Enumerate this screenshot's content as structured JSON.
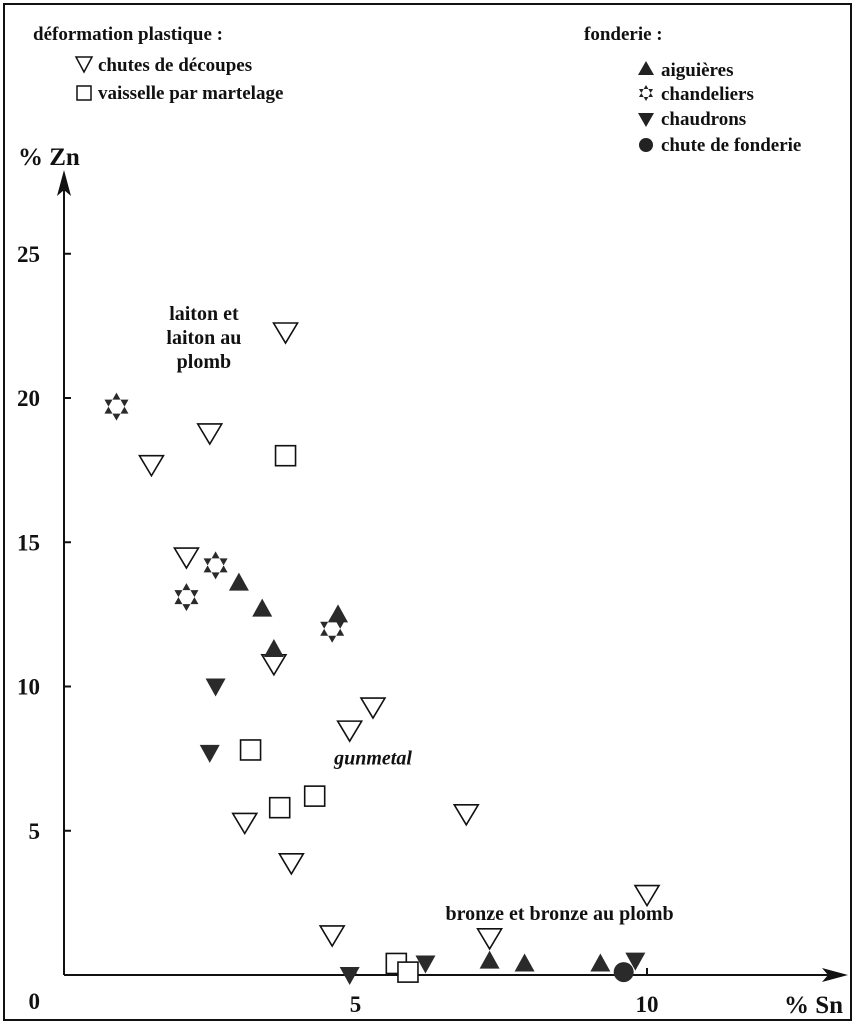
{
  "chart_data": {
    "type": "scatter",
    "xlabel": "% Sn",
    "ylabel": "% Zn",
    "xlim": [
      0,
      10.5
    ],
    "ylim": [
      0,
      27
    ],
    "x_ticks": [
      {
        "value": 5,
        "label": "5"
      },
      {
        "value": 10,
        "label": "10"
      }
    ],
    "y_ticks": [
      {
        "value": 0,
        "label": "0"
      },
      {
        "value": 5,
        "label": "5"
      },
      {
        "value": 10,
        "label": "10"
      },
      {
        "value": 15,
        "label": "15"
      },
      {
        "value": 20,
        "label": "20"
      },
      {
        "value": 25,
        "label": "25"
      }
    ],
    "legend": {
      "left_heading": "déformation plastique :",
      "right_heading": "fonderie :",
      "left_entries": [
        {
          "series": "chutes",
          "label": "chutes de découpes"
        },
        {
          "series": "vaisselle",
          "label": "vaisselle par martelage"
        }
      ],
      "right_entries": [
        {
          "series": "aiguieres",
          "label": "aiguières"
        },
        {
          "series": "chandeliers",
          "label": "chandeliers"
        },
        {
          "series": "chaudrons",
          "label": "chaudrons"
        },
        {
          "series": "chute_fonderie",
          "label": "chute de fonderie"
        }
      ]
    },
    "annotations": [
      {
        "text": [
          "laiton et",
          "laiton au",
          "plomb"
        ],
        "x": 2.4,
        "y": 22.7,
        "style": "bold"
      },
      {
        "text": [
          "gunmetal"
        ],
        "x": 5.3,
        "y": 7.3,
        "style": "bold-italic"
      },
      {
        "text": [
          "bronze et bronze au plomb"
        ],
        "x": 8.5,
        "y": 1.9,
        "style": "bold"
      }
    ],
    "series": [
      {
        "key": "chutes",
        "name": "chutes de découpes",
        "marker": "triangle-down-open",
        "points": [
          [
            1.5,
            17.7
          ],
          [
            2.5,
            18.8
          ],
          [
            3.8,
            22.3
          ],
          [
            2.1,
            14.5
          ],
          [
            3.6,
            10.8
          ],
          [
            4.9,
            8.5
          ],
          [
            5.3,
            9.3
          ],
          [
            3.1,
            5.3
          ],
          [
            3.9,
            3.9
          ],
          [
            4.6,
            1.4
          ],
          [
            7.3,
            1.3
          ],
          [
            6.9,
            5.6
          ],
          [
            10.0,
            2.8
          ]
        ]
      },
      {
        "key": "vaisselle",
        "name": "vaisselle par martelage",
        "marker": "square-open",
        "points": [
          [
            3.8,
            18.0
          ],
          [
            3.2,
            7.8
          ],
          [
            3.7,
            5.8
          ],
          [
            4.3,
            6.2
          ],
          [
            5.7,
            0.4
          ],
          [
            5.9,
            0.1
          ]
        ]
      },
      {
        "key": "aiguieres",
        "name": "aiguières",
        "marker": "triangle-up-filled",
        "points": [
          [
            3.0,
            13.6
          ],
          [
            3.4,
            12.7
          ],
          [
            3.6,
            11.3
          ],
          [
            4.7,
            12.5
          ],
          [
            7.3,
            0.5
          ],
          [
            7.9,
            0.4
          ],
          [
            9.2,
            0.4
          ]
        ]
      },
      {
        "key": "chandeliers",
        "name": "chandeliers",
        "marker": "star-filled",
        "points": [
          [
            0.9,
            19.7
          ],
          [
            2.6,
            14.2
          ],
          [
            2.1,
            13.1
          ],
          [
            4.6,
            12.0
          ]
        ]
      },
      {
        "key": "chaudrons",
        "name": "chaudrons",
        "marker": "triangle-down-filled",
        "points": [
          [
            2.6,
            10.0
          ],
          [
            2.5,
            7.7
          ],
          [
            4.9,
            0.0
          ],
          [
            6.2,
            0.4
          ],
          [
            9.8,
            0.5
          ]
        ]
      },
      {
        "key": "chute_fonderie",
        "name": "chute de fonderie",
        "marker": "circle-filled",
        "points": [
          [
            9.6,
            0.1
          ]
        ]
      }
    ]
  }
}
